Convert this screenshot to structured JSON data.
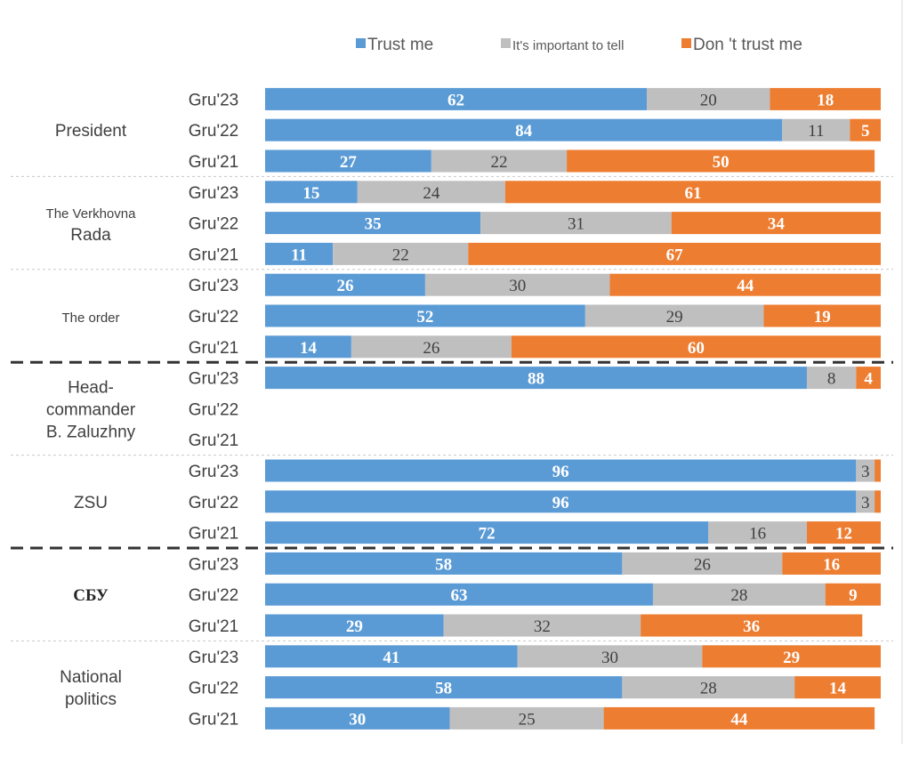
{
  "chart_data": {
    "type": "bar",
    "orientation": "horizontal",
    "stacked": true,
    "title": "",
    "xlabel": "",
    "ylabel": "",
    "xlim": [
      0,
      100
    ],
    "legend_position": "top",
    "grid": false,
    "series": [
      {
        "name": "Trust me",
        "color": "#5b9bd5"
      },
      {
        "name": "It's important to tell",
        "color": "#bfbfbf"
      },
      {
        "name": "Don 't trust me",
        "color": "#ed7d31"
      }
    ],
    "groups": [
      {
        "label": "President",
        "rows": [
          {
            "period": "Gru'23",
            "values": [
              62,
              20,
              18
            ]
          },
          {
            "period": "Gru'22",
            "values": [
              84,
              11,
              5
            ]
          },
          {
            "period": "Gru'21",
            "values": [
              27,
              22,
              50
            ]
          }
        ]
      },
      {
        "label": [
          "The Verkhovna",
          "Rada"
        ],
        "rows": [
          {
            "period": "Gru'23",
            "values": [
              15,
              24,
              61
            ]
          },
          {
            "period": "Gru'22",
            "values": [
              35,
              31,
              34
            ]
          },
          {
            "period": "Gru'21",
            "values": [
              11,
              22,
              67
            ]
          }
        ]
      },
      {
        "label": "The order",
        "rows": [
          {
            "period": "Gru'23",
            "values": [
              26,
              30,
              44
            ]
          },
          {
            "period": "Gru'22",
            "values": [
              52,
              29,
              19
            ]
          },
          {
            "period": "Gru'21",
            "values": [
              14,
              26,
              60
            ]
          }
        ]
      },
      {
        "label": [
          "Head-",
          "commander",
          "B. Zaluzhny"
        ],
        "rows": [
          {
            "period": "Gru'23",
            "values": [
              88,
              8,
              4
            ]
          },
          {
            "period": "Gru'22",
            "values": null
          },
          {
            "period": "Gru'21",
            "values": null
          }
        ]
      },
      {
        "label": "ZSU",
        "rows": [
          {
            "period": "Gru'23",
            "values": [
              96,
              3,
              1
            ]
          },
          {
            "period": "Gru'22",
            "values": [
              96,
              3,
              1
            ]
          },
          {
            "period": "Gru'21",
            "values": [
              72,
              16,
              12
            ]
          }
        ]
      },
      {
        "label": "СБУ",
        "rows": [
          {
            "period": "Gru'23",
            "values": [
              58,
              26,
              16
            ]
          },
          {
            "period": "Gru'22",
            "values": [
              63,
              28,
              9
            ]
          },
          {
            "period": "Gru'21",
            "values": [
              29,
              32,
              36
            ]
          }
        ]
      },
      {
        "label": [
          "National",
          "politics"
        ],
        "rows": [
          {
            "period": "Gru'23",
            "values": [
              41,
              30,
              29
            ]
          },
          {
            "period": "Gru'22",
            "values": [
              58,
              28,
              14
            ]
          },
          {
            "period": "Gru'21",
            "values": [
              30,
              25,
              44
            ]
          }
        ]
      }
    ]
  }
}
